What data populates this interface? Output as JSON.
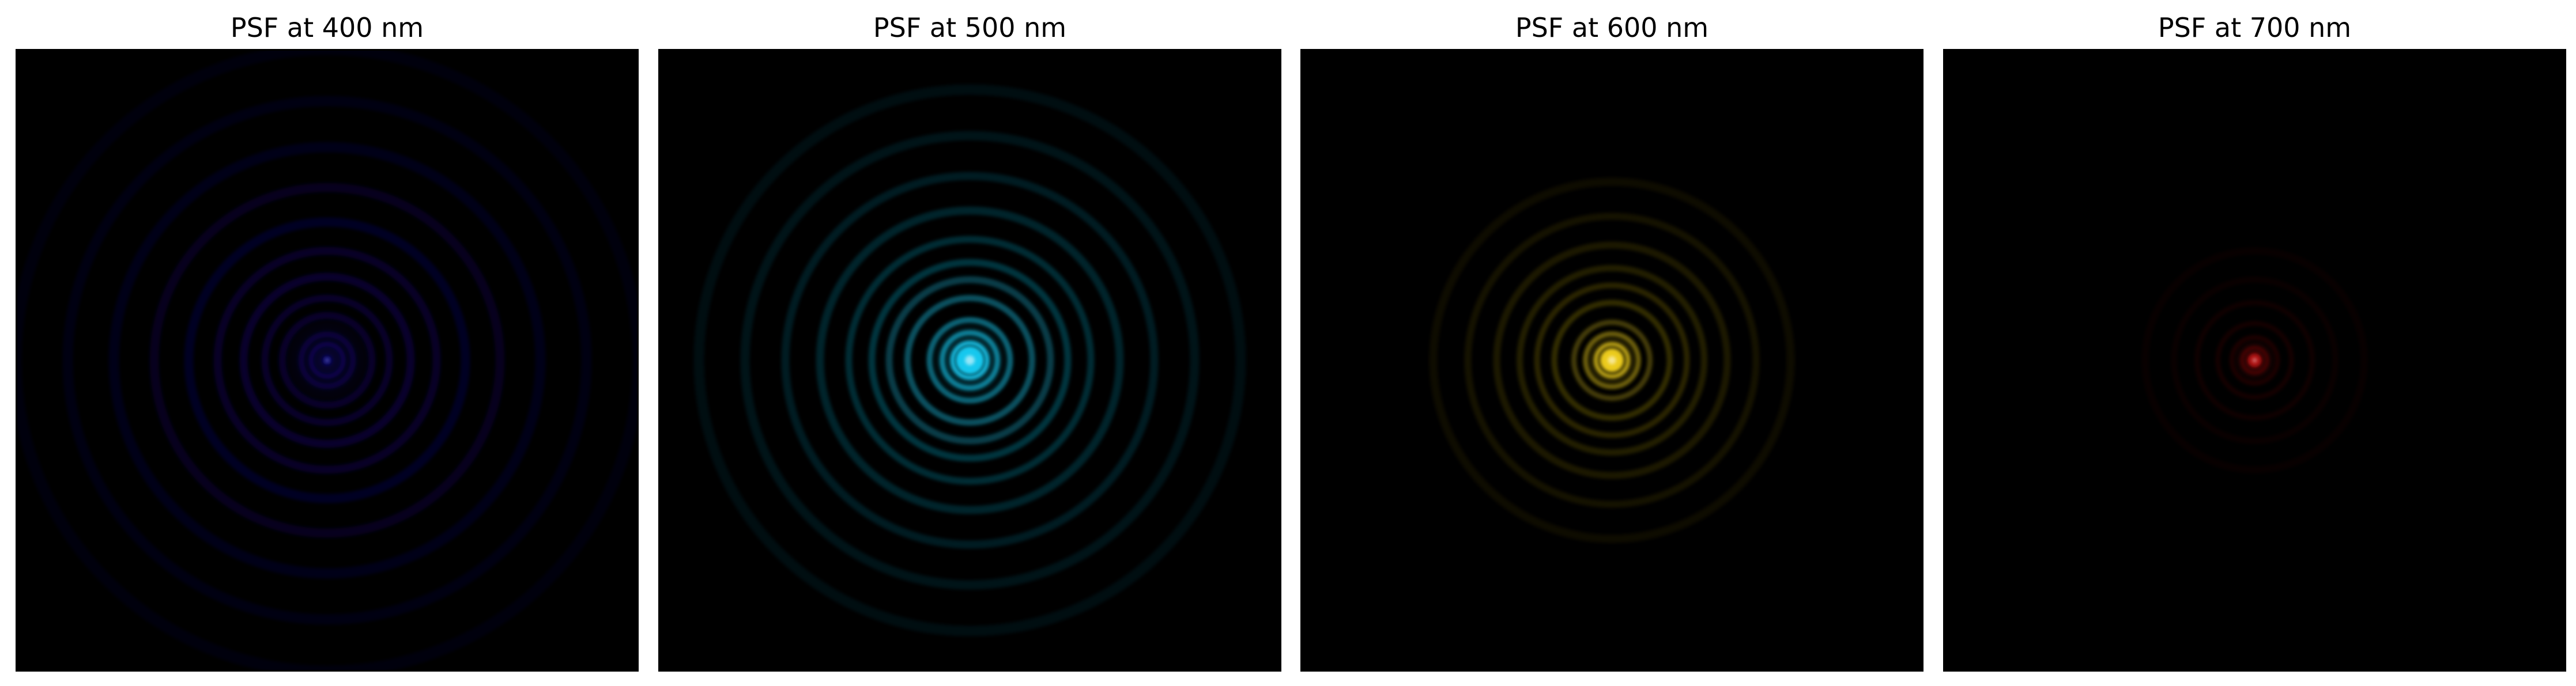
{
  "figure": {
    "panels": [
      {
        "title": "PSF at 400 nm",
        "wavelength_nm": 400,
        "color": "#1a0fa8",
        "peak": 0.55
      },
      {
        "title": "PSF at 500 nm",
        "wavelength_nm": 500,
        "color": "#14c8ee",
        "peak": 1.0
      },
      {
        "title": "PSF at 600 nm",
        "wavelength_nm": 600,
        "color": "#f2d21a",
        "peak": 0.95
      },
      {
        "title": "PSF at 700 nm",
        "wavelength_nm": 700,
        "color": "#d51414",
        "peak": 0.7
      }
    ]
  }
}
